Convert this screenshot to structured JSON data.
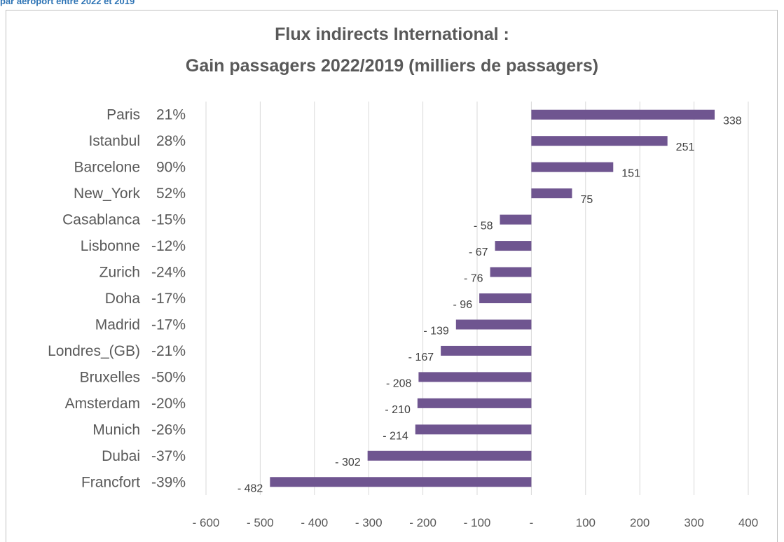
{
  "page": {
    "top_caption": "par aéroport entre 2022 et 2019"
  },
  "chart_data": {
    "type": "bar",
    "orientation": "horizontal",
    "title": "Flux indirects International :",
    "subtitle": "Gain passagers 2022/2019 (milliers de passagers)",
    "xlabel": "",
    "ylabel": "",
    "xlim": [
      -600,
      400
    ],
    "x_ticks": [
      -600,
      -500,
      -400,
      -300,
      -200,
      -100,
      0,
      100,
      200,
      300,
      400
    ],
    "x_tick_labels": [
      "- 600",
      "- 500",
      "- 400",
      "- 300",
      "- 200",
      "- 100",
      "-",
      "100",
      "200",
      "300",
      "400"
    ],
    "grid": "vertical",
    "legend": "none",
    "bar_color": "#6f5590",
    "categories": [
      {
        "city": "Paris",
        "pct": "21%"
      },
      {
        "city": "Istanbul",
        "pct": "28%"
      },
      {
        "city": "Barcelone",
        "pct": "90%"
      },
      {
        "city": "New_York",
        "pct": "52%"
      },
      {
        "city": "Casablanca",
        "pct": "-15%"
      },
      {
        "city": "Lisbonne",
        "pct": "-12%"
      },
      {
        "city": "Zurich",
        "pct": "-24%"
      },
      {
        "city": "Doha",
        "pct": "-17%"
      },
      {
        "city": "Madrid",
        "pct": "-17%"
      },
      {
        "city": "Londres_(GB)",
        "pct": "-21%"
      },
      {
        "city": "Bruxelles",
        "pct": "-50%"
      },
      {
        "city": "Amsterdam",
        "pct": "-20%"
      },
      {
        "city": "Munich",
        "pct": "-26%"
      },
      {
        "city": "Dubai",
        "pct": "-37%"
      },
      {
        "city": "Francfort",
        "pct": "-39%"
      }
    ],
    "values": [
      338,
      251,
      151,
      75,
      -58,
      -67,
      -76,
      -96,
      -139,
      -167,
      -208,
      -210,
      -214,
      -302,
      -482
    ],
    "value_labels": [
      "338",
      "251",
      "151",
      "75",
      "- 58",
      "- 67",
      "- 76",
      "- 96",
      "- 139",
      "- 167",
      "- 208",
      "- 210",
      "- 214",
      "- 302",
      "- 482"
    ]
  }
}
